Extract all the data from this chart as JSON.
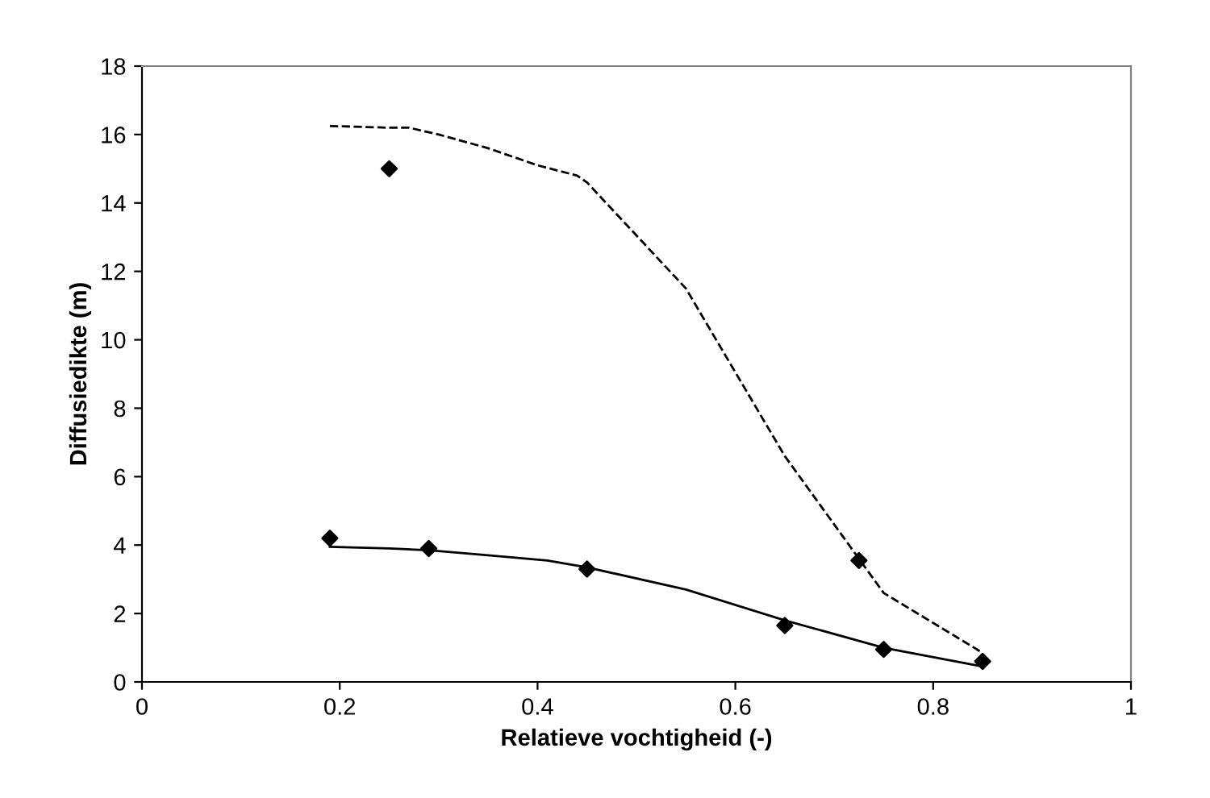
{
  "chart_data": {
    "type": "line",
    "xlabel": "Relatieve vochtigheid (-)",
    "ylabel": "Diffusiedikte (m)",
    "xlim": [
      0,
      1
    ],
    "ylim": [
      0,
      18
    ],
    "xticks": [
      0,
      0.2,
      0.4,
      0.6,
      0.8,
      1
    ],
    "yticks": [
      0,
      2,
      4,
      6,
      8,
      10,
      12,
      14,
      16,
      18
    ],
    "grid": false,
    "series": [
      {
        "type": "scatter",
        "marker": "diamond",
        "color": "#000000",
        "x": [
          0.19,
          0.25,
          0.29,
          0.45,
          0.65,
          0.725,
          0.75,
          0.85
        ],
        "values": [
          4.2,
          15.0,
          3.9,
          3.3,
          1.65,
          3.55,
          0.95,
          0.6
        ]
      },
      {
        "line_style": "solid",
        "marker": "none",
        "color": "#000000",
        "x": [
          0.19,
          0.25,
          0.29,
          0.35,
          0.41,
          0.45,
          0.55,
          0.65,
          0.75,
          0.85
        ],
        "values": [
          3.95,
          3.9,
          3.85,
          3.7,
          3.55,
          3.35,
          2.7,
          1.8,
          1.0,
          0.45
        ]
      },
      {
        "line_style": "dashed",
        "marker": "none",
        "color": "#000000",
        "x": [
          0.19,
          0.25,
          0.27,
          0.3,
          0.35,
          0.4,
          0.44,
          0.45,
          0.55,
          0.65,
          0.75,
          0.85
        ],
        "values": [
          16.25,
          16.2,
          16.2,
          16.0,
          15.6,
          15.1,
          14.8,
          14.6,
          11.5,
          6.6,
          2.6,
          0.85
        ]
      }
    ]
  }
}
